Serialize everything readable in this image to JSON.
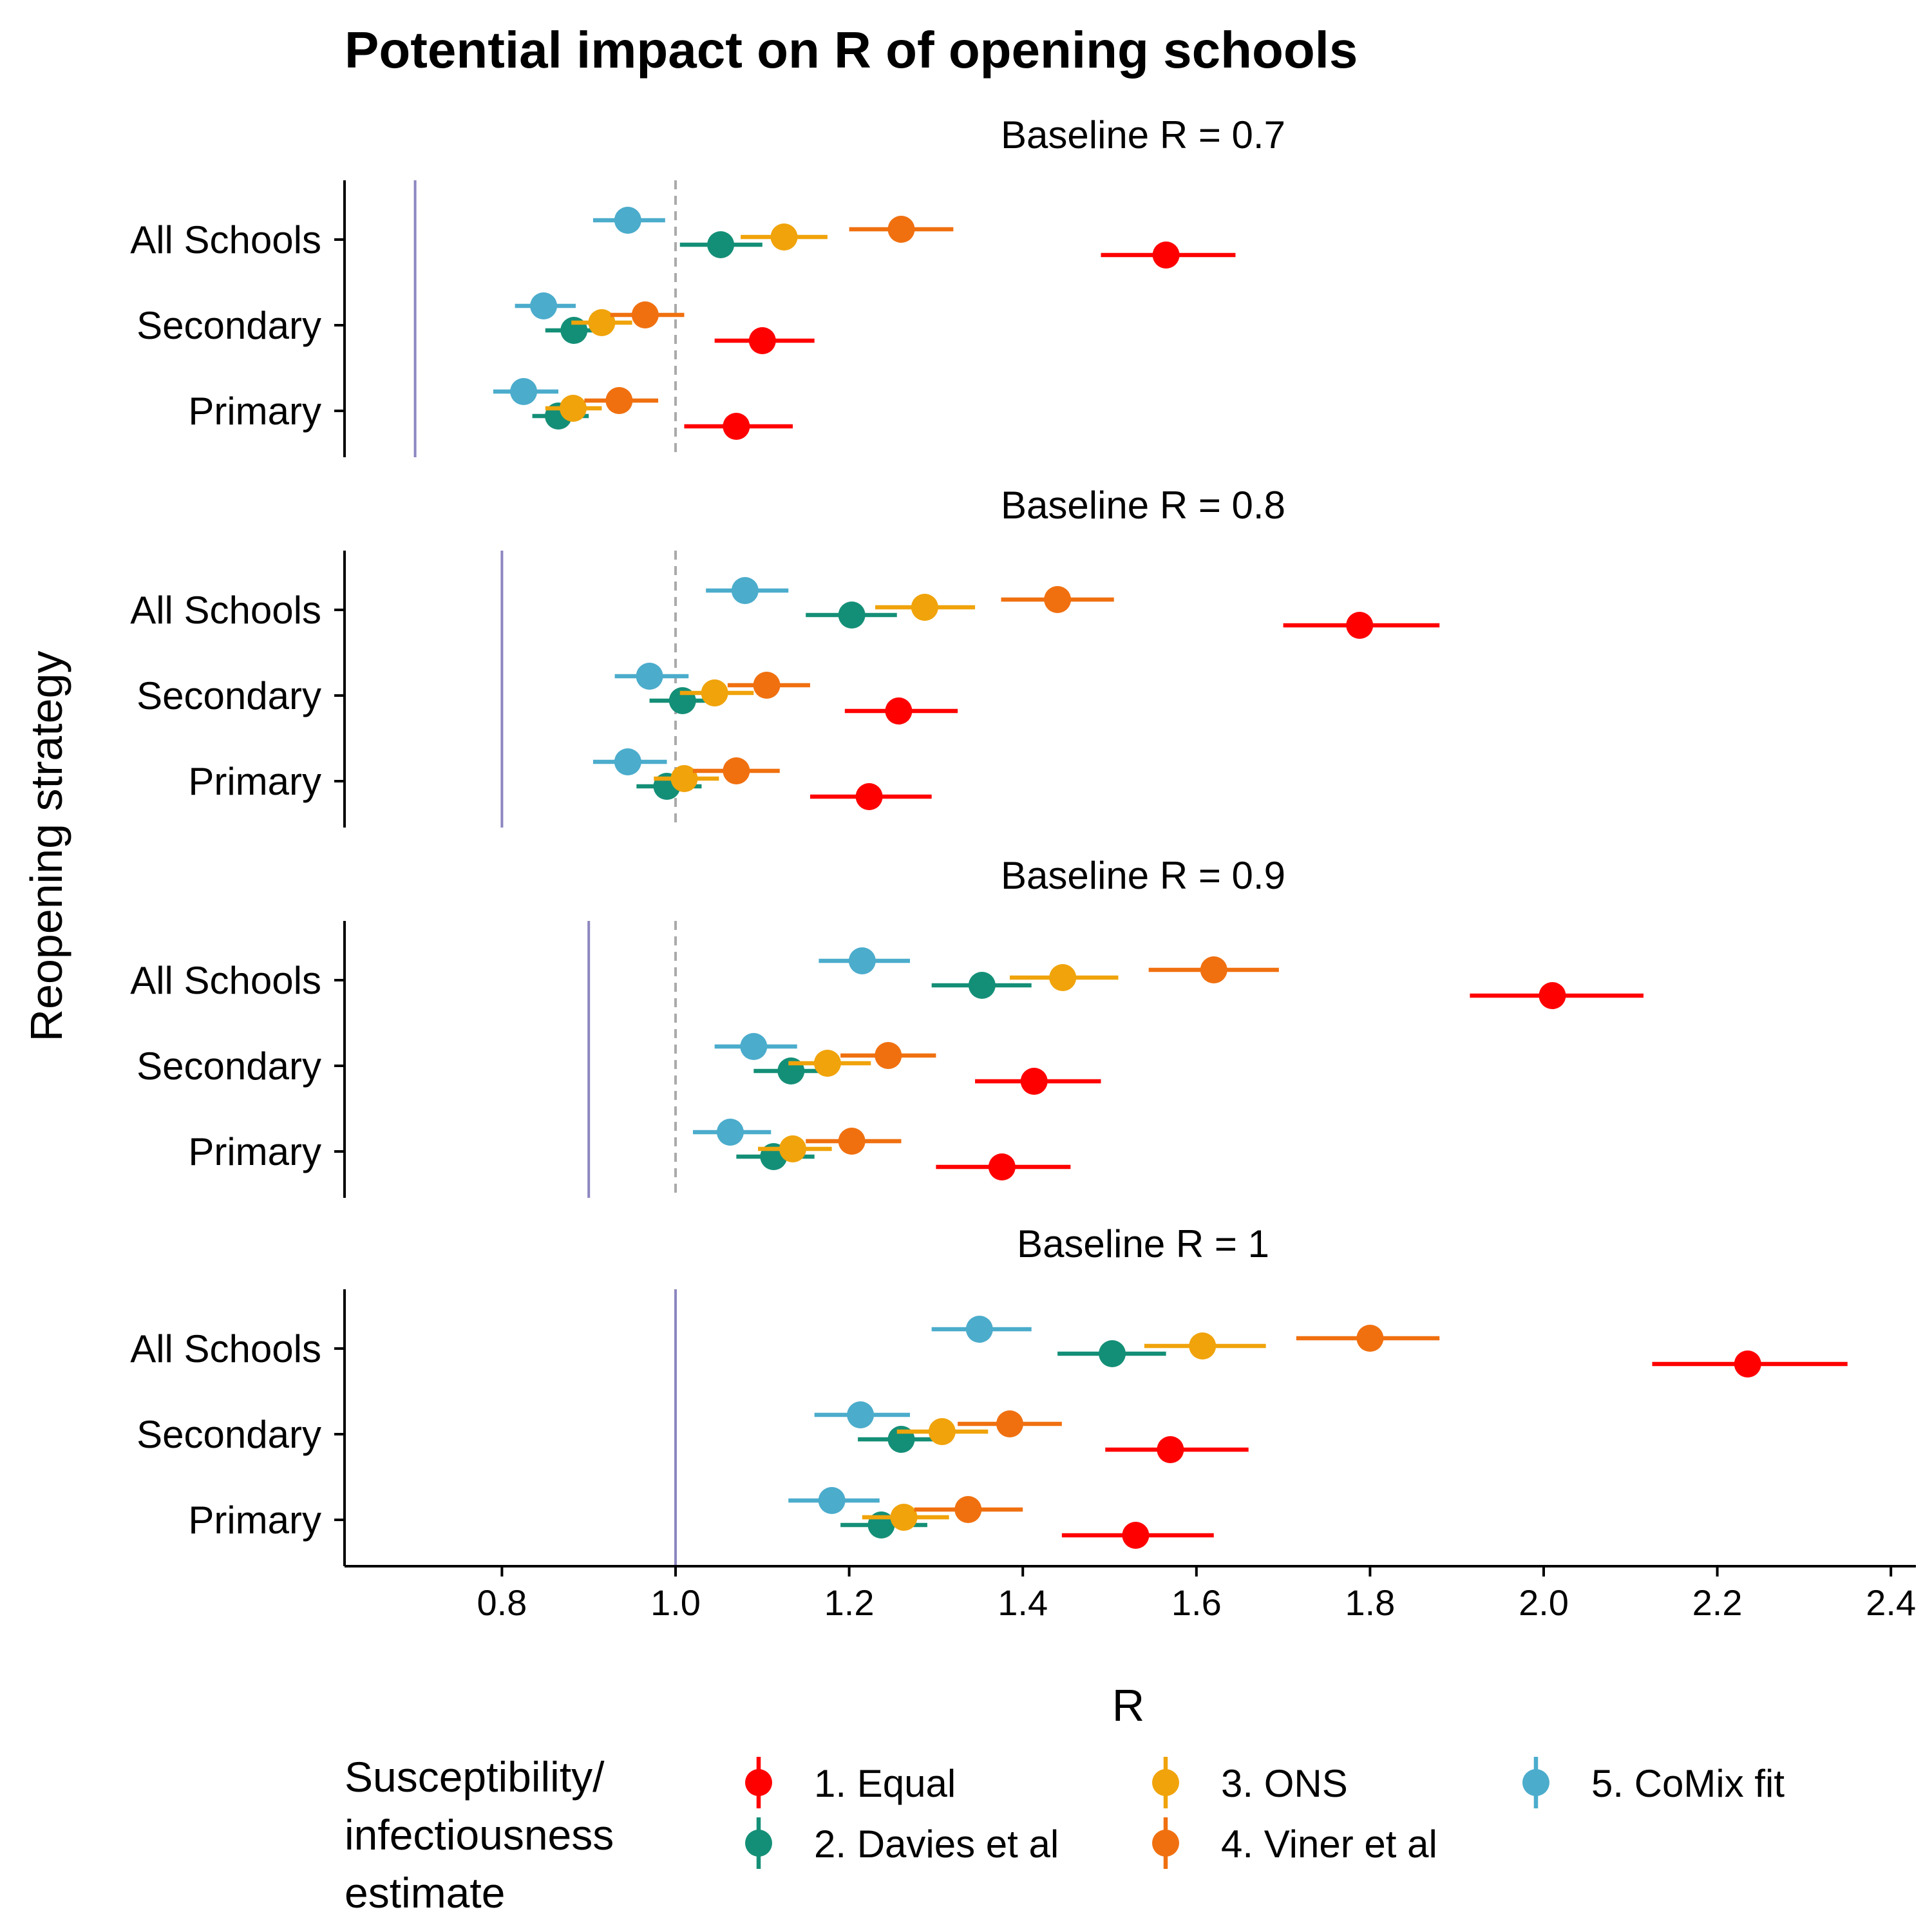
{
  "chart_data": {
    "type": "forest",
    "title": "Potential impact on R of opening schools",
    "xlabel": "R",
    "ylabel": "Reopening strategy",
    "xlim": [
      0.62,
      2.43
    ],
    "xticks": [
      "0.8",
      "1.0",
      "1.2",
      "1.4",
      "1.6",
      "1.8",
      "2.0",
      "2.2",
      "2.4"
    ],
    "xtick_values": [
      0.8,
      1.0,
      1.2,
      1.4,
      1.6,
      1.8,
      2.0,
      2.2,
      2.4
    ],
    "categories": [
      "All Schools",
      "Secondary",
      "Primary"
    ],
    "reference_line": 1.0,
    "legend": {
      "title_lines": [
        "Susceptibility/",
        "infectiousness",
        "estimate"
      ],
      "position": "bottom"
    },
    "series": [
      {
        "name": "1. Equal",
        "color": "#FF0000"
      },
      {
        "name": "2. Davies et al",
        "color": "#148F77"
      },
      {
        "name": "3. ONS",
        "color": "#F0A30A"
      },
      {
        "name": "4. Viner et al",
        "color": "#F07010"
      },
      {
        "name": "5. CoMix fit",
        "color": "#4BACCC"
      }
    ],
    "panels": [
      {
        "label": "Baseline R = 0.7",
        "baseline": 0.7,
        "data": {
          "All Schools": [
            [
              1.565,
              1.49,
              1.645
            ],
            [
              1.052,
              1.005,
              1.1
            ],
            [
              1.125,
              1.075,
              1.175
            ],
            [
              1.26,
              1.2,
              1.32
            ],
            [
              0.945,
              0.905,
              0.988
            ]
          ],
          "Secondary": [
            [
              1.1,
              1.045,
              1.16
            ],
            [
              0.883,
              0.85,
              0.918
            ],
            [
              0.915,
              0.88,
              0.95
            ],
            [
              0.965,
              0.925,
              1.01
            ],
            [
              0.848,
              0.815,
              0.885
            ]
          ],
          "Primary": [
            [
              1.07,
              1.01,
              1.135
            ],
            [
              0.865,
              0.835,
              0.9
            ],
            [
              0.882,
              0.85,
              0.915
            ],
            [
              0.935,
              0.895,
              0.98
            ],
            [
              0.825,
              0.79,
              0.865
            ]
          ]
        }
      },
      {
        "label": "Baseline R = 0.8",
        "baseline": 0.8,
        "data": {
          "All Schools": [
            [
              1.788,
              1.7,
              1.88
            ],
            [
              1.203,
              1.15,
              1.255
            ],
            [
              1.287,
              1.23,
              1.345
            ],
            [
              1.44,
              1.375,
              1.505
            ],
            [
              1.08,
              1.035,
              1.13
            ]
          ],
          "Secondary": [
            [
              1.257,
              1.195,
              1.325
            ],
            [
              1.008,
              0.97,
              1.05
            ],
            [
              1.045,
              1.005,
              1.09
            ],
            [
              1.105,
              1.06,
              1.155
            ],
            [
              0.97,
              0.93,
              1.015
            ]
          ],
          "Primary": [
            [
              1.223,
              1.155,
              1.295
            ],
            [
              0.99,
              0.955,
              1.03
            ],
            [
              1.01,
              0.975,
              1.05
            ],
            [
              1.07,
              1.02,
              1.12
            ],
            [
              0.945,
              0.905,
              0.99
            ]
          ]
        }
      },
      {
        "label": "Baseline R = 0.9",
        "baseline": 0.9,
        "data": {
          "All Schools": [
            [
              2.01,
              1.915,
              2.115
            ],
            [
              1.353,
              1.295,
              1.41
            ],
            [
              1.446,
              1.385,
              1.51
            ],
            [
              1.62,
              1.545,
              1.695
            ],
            [
              1.215,
              1.165,
              1.27
            ]
          ],
          "Secondary": [
            [
              1.413,
              1.345,
              1.49
            ],
            [
              1.133,
              1.09,
              1.18
            ],
            [
              1.175,
              1.13,
              1.225
            ],
            [
              1.245,
              1.19,
              1.3
            ],
            [
              1.09,
              1.045,
              1.14
            ]
          ],
          "Primary": [
            [
              1.376,
              1.3,
              1.455
            ],
            [
              1.113,
              1.07,
              1.16
            ],
            [
              1.135,
              1.095,
              1.18
            ],
            [
              1.203,
              1.15,
              1.26
            ],
            [
              1.063,
              1.02,
              1.11
            ]
          ]
        }
      },
      {
        "label": "Baseline R = 1",
        "baseline": 1.0,
        "data": {
          "All Schools": [
            [
              2.235,
              2.125,
              2.35
            ],
            [
              1.503,
              1.44,
              1.565
            ],
            [
              1.607,
              1.54,
              1.68
            ],
            [
              1.8,
              1.715,
              1.88
            ],
            [
              1.35,
              1.295,
              1.41
            ]
          ],
          "Secondary": [
            [
              1.57,
              1.495,
              1.66
            ],
            [
              1.26,
              1.21,
              1.31
            ],
            [
              1.307,
              1.255,
              1.36
            ],
            [
              1.385,
              1.325,
              1.445
            ],
            [
              1.213,
              1.16,
              1.27
            ]
          ],
          "Primary": [
            [
              1.53,
              1.445,
              1.62
            ],
            [
              1.237,
              1.19,
              1.29
            ],
            [
              1.263,
              1.215,
              1.315
            ],
            [
              1.337,
              1.275,
              1.4
            ],
            [
              1.18,
              1.13,
              1.235
            ]
          ]
        }
      }
    ]
  }
}
